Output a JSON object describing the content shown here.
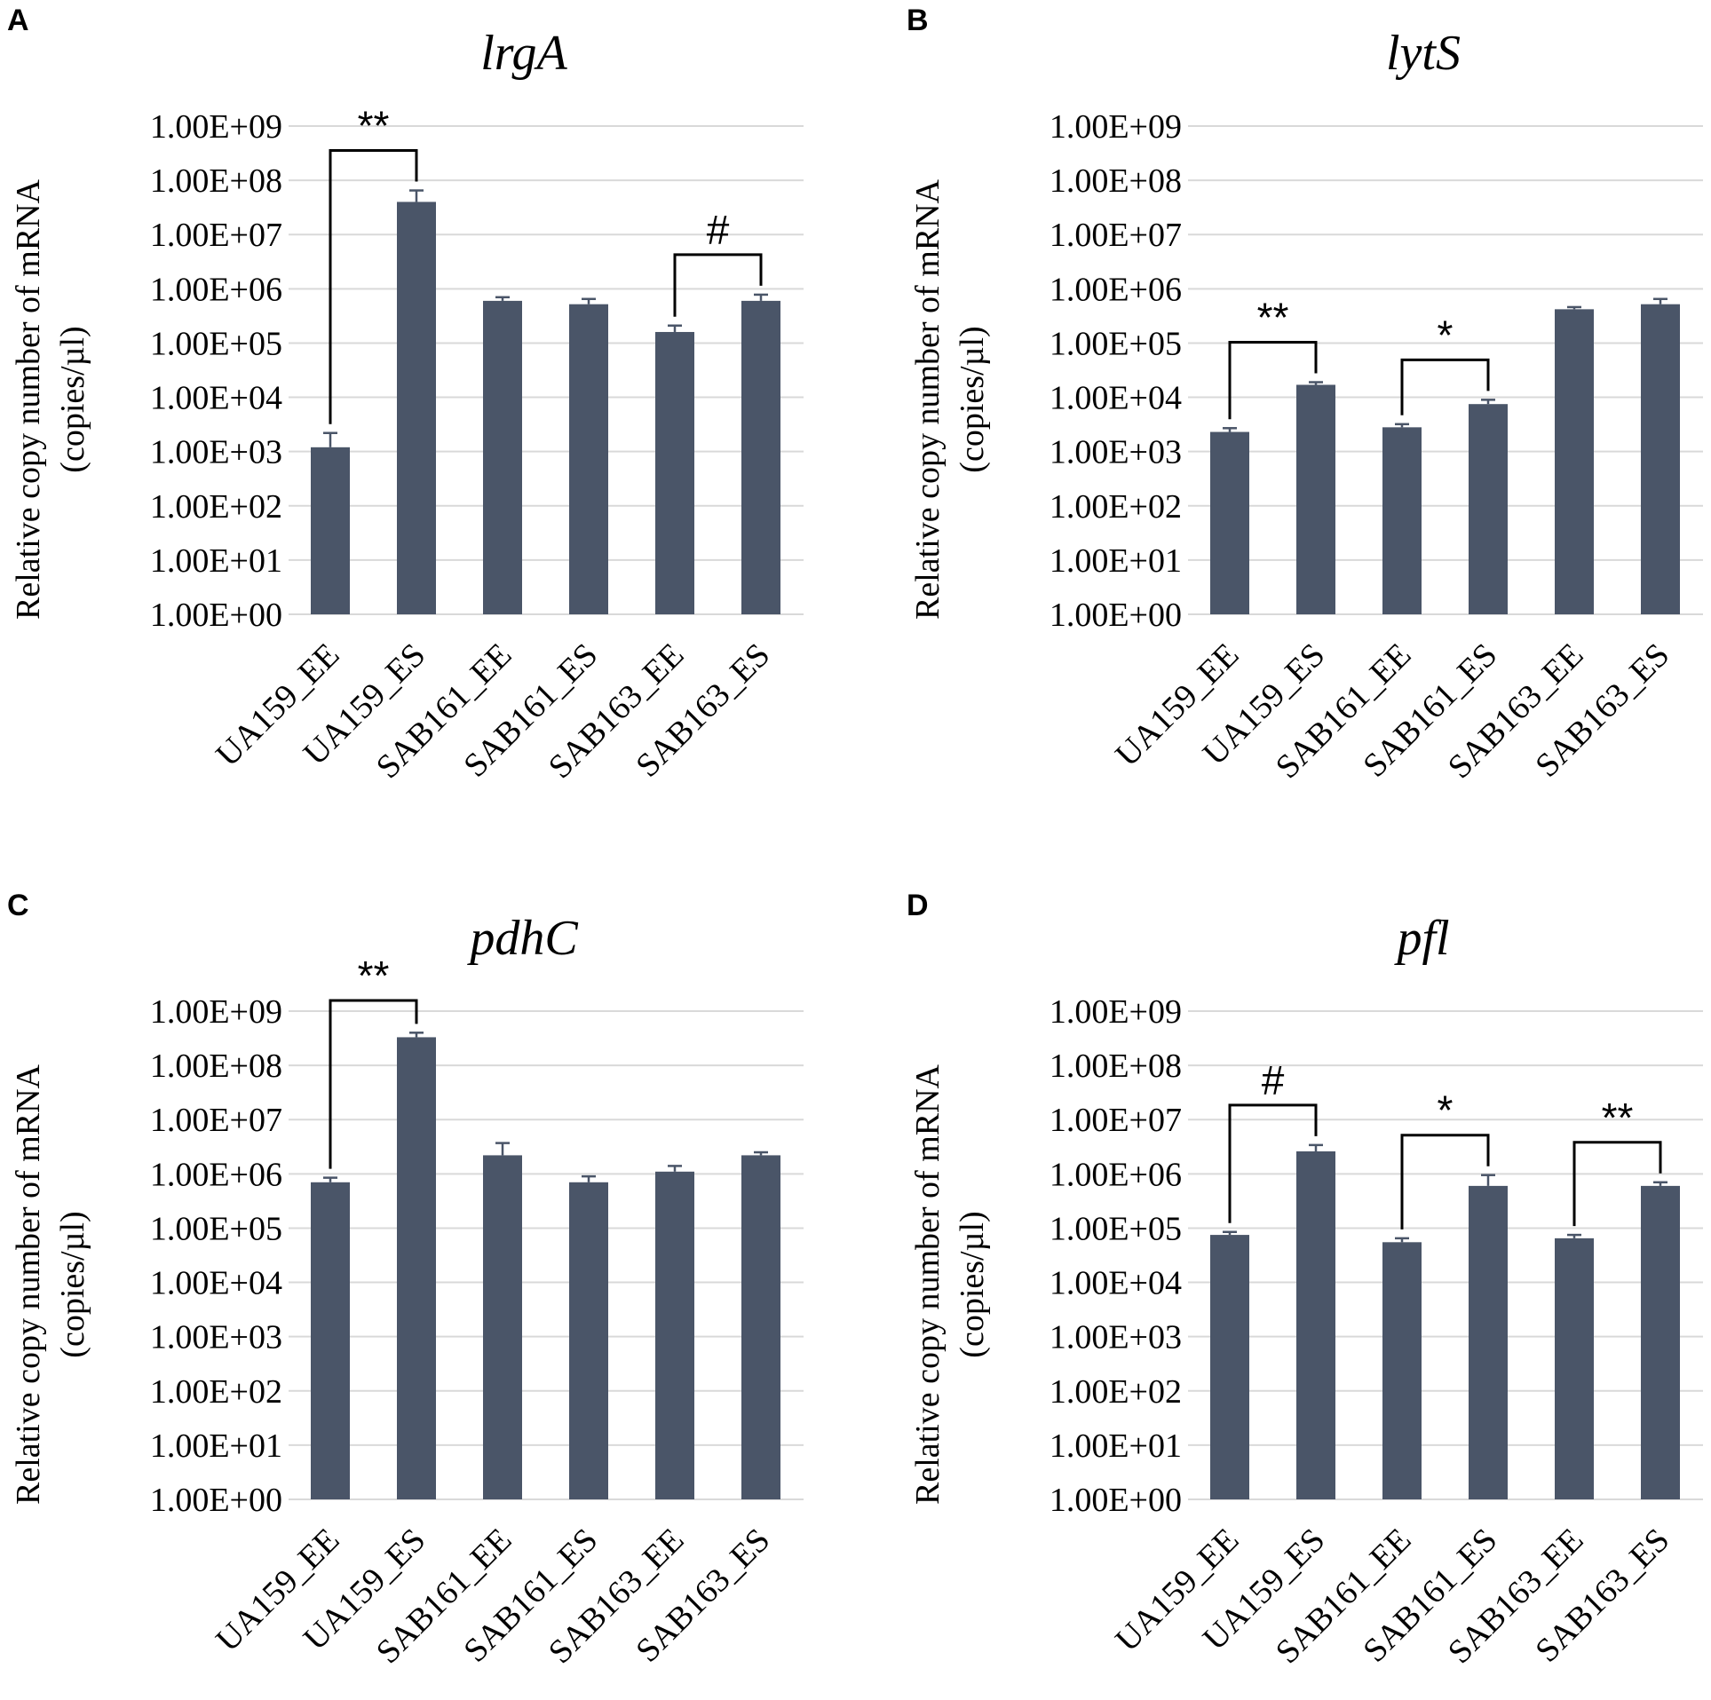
{
  "chart_data": [
    {
      "panel": "A",
      "type": "bar",
      "title": "lrgA",
      "ylabel": [
        "Relative copy number of mRNA",
        "(copies/µl)"
      ],
      "yscale": "log",
      "ylim": [
        1,
        1000000000
      ],
      "yticks": [
        "1.00E+00",
        "1.00E+01",
        "1.00E+02",
        "1.00E+03",
        "1.00E+04",
        "1.00E+05",
        "1.00E+06",
        "1.00E+07",
        "1.00E+08",
        "1.00E+09"
      ],
      "categories": [
        "UA159_EE",
        "UA159_ES",
        "SAB161_EE",
        "SAB161_ES",
        "SAB163_EE",
        "SAB163_ES"
      ],
      "values": [
        1200,
        40000000,
        600000,
        520000,
        160000,
        600000
      ],
      "errors_upper": [
        2200,
        65000000,
        700000,
        650000,
        210000,
        780000
      ],
      "significance": [
        {
          "from": 0,
          "to": 1,
          "label": "**"
        },
        {
          "from": 4,
          "to": 5,
          "label": "#"
        }
      ]
    },
    {
      "panel": "B",
      "type": "bar",
      "title": "lytS",
      "ylabel": [
        "Relative copy number of mRNA",
        "(copies/µl)"
      ],
      "yscale": "log",
      "ylim": [
        1,
        1000000000
      ],
      "yticks": [
        "1.00E+00",
        "1.00E+01",
        "1.00E+02",
        "1.00E+03",
        "1.00E+04",
        "1.00E+05",
        "1.00E+06",
        "1.00E+07",
        "1.00E+08",
        "1.00E+09"
      ],
      "categories": [
        "UA159_EE",
        "UA159_ES",
        "SAB161_EE",
        "SAB161_ES",
        "SAB163_EE",
        "SAB163_ES"
      ],
      "values": [
        2300,
        17000,
        2800,
        7500,
        420000,
        520000
      ],
      "errors_upper": [
        2700,
        19000,
        3200,
        9000,
        460000,
        650000
      ],
      "significance": [
        {
          "from": 0,
          "to": 1,
          "label": "**"
        },
        {
          "from": 2,
          "to": 3,
          "label": "*"
        }
      ]
    },
    {
      "panel": "C",
      "type": "bar",
      "title": "pdhC",
      "ylabel": [
        "Relative copy number of mRNA",
        "(copies/µl)"
      ],
      "yscale": "log",
      "ylim": [
        1,
        1000000000
      ],
      "yticks": [
        "1.00E+00",
        "1.00E+01",
        "1.00E+02",
        "1.00E+03",
        "1.00E+04",
        "1.00E+05",
        "1.00E+06",
        "1.00E+07",
        "1.00E+08",
        "1.00E+09"
      ],
      "categories": [
        "UA159_EE",
        "UA159_ES",
        "SAB161_EE",
        "SAB161_ES",
        "SAB163_EE",
        "SAB163_ES"
      ],
      "values": [
        700000,
        330000000,
        2200000,
        700000,
        1100000,
        2200000
      ],
      "errors_upper": [
        850000,
        400000000,
        3700000,
        900000,
        1400000,
        2500000
      ],
      "significance": [
        {
          "from": 0,
          "to": 1,
          "label": "**"
        }
      ]
    },
    {
      "panel": "D",
      "type": "bar",
      "title": "pfl",
      "ylabel": [
        "Relative copy number of mRNA",
        "(copies/µl)"
      ],
      "yscale": "log",
      "ylim": [
        1,
        1000000000
      ],
      "yticks": [
        "1.00E+00",
        "1.00E+01",
        "1.00E+02",
        "1.00E+03",
        "1.00E+04",
        "1.00E+05",
        "1.00E+06",
        "1.00E+07",
        "1.00E+08",
        "1.00E+09"
      ],
      "categories": [
        "UA159_EE",
        "UA159_ES",
        "SAB161_EE",
        "SAB161_ES",
        "SAB163_EE",
        "SAB163_ES"
      ],
      "values": [
        75000,
        2600000,
        55000,
        600000,
        65000,
        600000
      ],
      "errors_upper": [
        85000,
        3400000,
        65000,
        950000,
        75000,
        700000
      ],
      "significance": [
        {
          "from": 0,
          "to": 1,
          "label": "#"
        },
        {
          "from": 2,
          "to": 3,
          "label": "*"
        },
        {
          "from": 4,
          "to": 5,
          "label": "**"
        }
      ]
    }
  ]
}
